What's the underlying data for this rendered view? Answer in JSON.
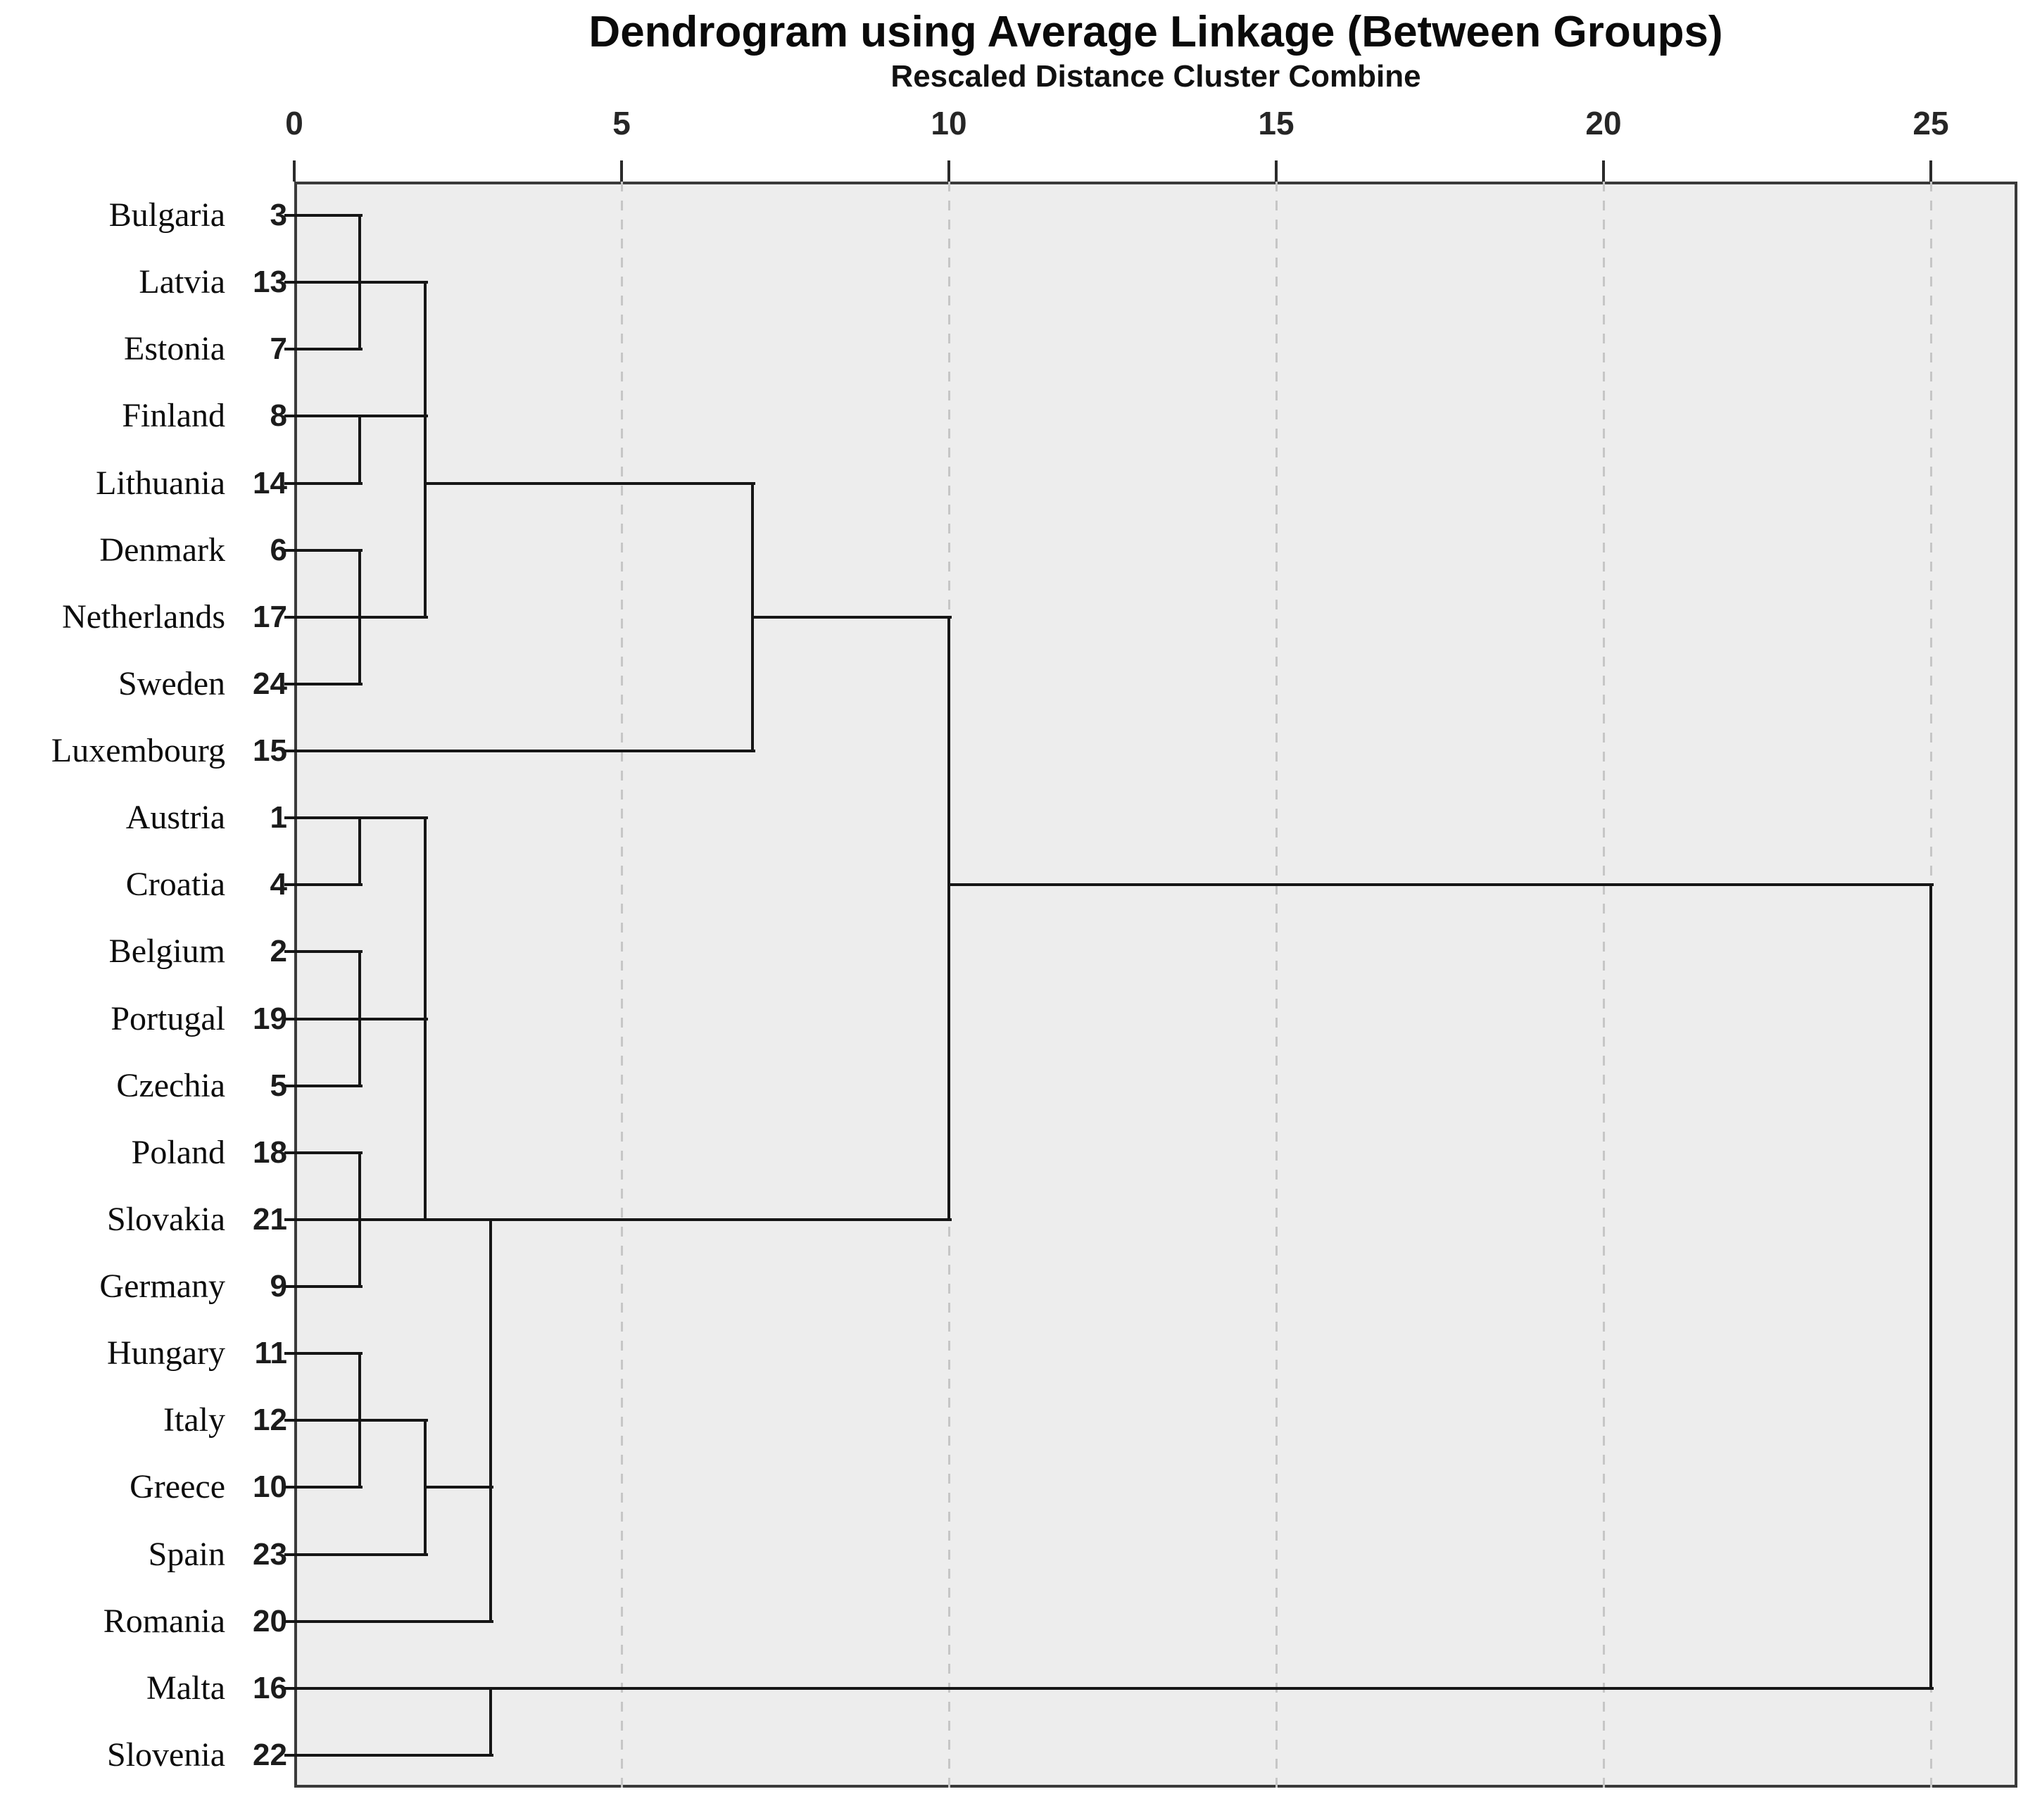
{
  "header": {
    "title": "Dendrogram using Average Linkage (Between Groups)",
    "subtitle": "Rescaled Distance Cluster Combine"
  },
  "axis": {
    "title": "Rescaled Distance Cluster Combine",
    "ticks": [
      "0",
      "5",
      "10",
      "15",
      "20",
      "25"
    ],
    "tick_values": [
      0,
      5,
      10,
      15,
      20,
      25
    ]
  },
  "chart_data": {
    "type": "dendrogram",
    "orientation": "horizontal",
    "title": "Dendrogram using Average Linkage (Between Groups)",
    "xlabel": "Rescaled Distance Cluster Combine",
    "xlim": [
      0,
      25
    ],
    "grid": "dashed vertical gridlines at 5,10,15,20,25",
    "leaves": [
      {
        "order": 1,
        "country": "Bulgaria",
        "case": "3"
      },
      {
        "order": 2,
        "country": "Latvia",
        "case": "13"
      },
      {
        "order": 3,
        "country": "Estonia",
        "case": "7"
      },
      {
        "order": 4,
        "country": "Finland",
        "case": "8"
      },
      {
        "order": 5,
        "country": "Lithuania",
        "case": "14"
      },
      {
        "order": 6,
        "country": "Denmark",
        "case": "6"
      },
      {
        "order": 7,
        "country": "Netherlands",
        "case": "17"
      },
      {
        "order": 8,
        "country": "Sweden",
        "case": "24"
      },
      {
        "order": 9,
        "country": "Luxembourg",
        "case": "15"
      },
      {
        "order": 10,
        "country": "Austria",
        "case": "1"
      },
      {
        "order": 11,
        "country": "Croatia",
        "case": "4"
      },
      {
        "order": 12,
        "country": "Belgium",
        "case": "2"
      },
      {
        "order": 13,
        "country": "Portugal",
        "case": "19"
      },
      {
        "order": 14,
        "country": "Czechia",
        "case": "5"
      },
      {
        "order": 15,
        "country": "Poland",
        "case": "18"
      },
      {
        "order": 16,
        "country": "Slovakia",
        "case": "21"
      },
      {
        "order": 17,
        "country": "Germany",
        "case": "9"
      },
      {
        "order": 18,
        "country": "Hungary",
        "case": "11"
      },
      {
        "order": 19,
        "country": "Italy",
        "case": "12"
      },
      {
        "order": 20,
        "country": "Greece",
        "case": "10"
      },
      {
        "order": 21,
        "country": "Spain",
        "case": "23"
      },
      {
        "order": 22,
        "country": "Romania",
        "case": "20"
      },
      {
        "order": 23,
        "country": "Malta",
        "case": "16"
      },
      {
        "order": 24,
        "country": "Slovenia",
        "case": "22"
      }
    ],
    "merges": [
      {
        "distance": 1,
        "members": "Bulgaria + Latvia + Estonia"
      },
      {
        "distance": 1,
        "members": "Finland + Lithuania"
      },
      {
        "distance": 1,
        "members": "Denmark + Netherlands + Sweden"
      },
      {
        "distance": 1,
        "members": "Austria + Croatia"
      },
      {
        "distance": 1,
        "members": "Belgium + Portugal + Czechia"
      },
      {
        "distance": 1,
        "members": "Poland + Slovakia + Germany"
      },
      {
        "distance": 1,
        "members": "Hungary + Italy + Greece"
      },
      {
        "distance": 2,
        "members": "{Bulgaria,Latvia,Estonia} + {Finland,Lithuania} + {Denmark,Netherlands,Sweden}"
      },
      {
        "distance": 2,
        "members": "{Austria,Croatia} + {Belgium,Portugal,Czechia} + {Poland,Slovakia,Germany}"
      },
      {
        "distance": 2,
        "members": "{Hungary,Italy,Greece} + Spain"
      },
      {
        "distance": 3,
        "members": "{central-8} + {Hungary,Italy,Greece,Spain} + Romania"
      },
      {
        "distance": 3,
        "members": "Malta + Slovenia"
      },
      {
        "distance": 7,
        "members": "{Baltic-Nordic-8} + Luxembourg"
      },
      {
        "distance": 10,
        "members": "{Baltic-Nordic-9} + {central-south-13}"
      },
      {
        "distance": 25,
        "members": "{main-22} + {Malta,Slovenia}"
      }
    ],
    "segments": {
      "horizontal": [
        [
          1,
          0,
          1
        ],
        [
          2,
          0,
          2
        ],
        [
          3,
          0,
          1
        ],
        [
          4,
          0,
          2
        ],
        [
          5,
          0,
          1
        ],
        [
          5,
          2,
          7
        ],
        [
          6,
          0,
          1
        ],
        [
          7,
          0,
          2
        ],
        [
          7,
          7,
          10
        ],
        [
          8,
          0,
          1
        ],
        [
          9,
          0,
          7
        ],
        [
          10,
          0,
          2
        ],
        [
          11,
          0,
          1
        ],
        [
          11,
          10,
          25
        ],
        [
          12,
          0,
          1
        ],
        [
          13,
          0,
          2
        ],
        [
          14,
          0,
          1
        ],
        [
          15,
          0,
          1
        ],
        [
          16,
          0,
          10
        ],
        [
          17,
          0,
          1
        ],
        [
          18,
          0,
          1
        ],
        [
          19,
          0,
          2
        ],
        [
          20,
          0,
          1
        ],
        [
          20,
          2,
          3
        ],
        [
          21,
          0,
          2
        ],
        [
          22,
          0,
          3
        ],
        [
          23,
          0,
          25
        ],
        [
          24,
          0,
          3
        ]
      ],
      "vertical": [
        [
          1,
          1,
          3
        ],
        [
          1,
          4,
          5
        ],
        [
          1,
          6,
          8
        ],
        [
          1,
          10,
          11
        ],
        [
          1,
          12,
          14
        ],
        [
          1,
          15,
          17
        ],
        [
          1,
          18,
          20
        ],
        [
          2,
          2,
          7
        ],
        [
          2,
          10,
          16
        ],
        [
          2,
          19,
          21
        ],
        [
          3,
          16,
          22
        ],
        [
          3,
          23,
          24
        ],
        [
          7,
          5,
          9
        ],
        [
          10,
          7,
          16
        ],
        [
          25,
          11,
          23
        ]
      ]
    },
    "colors": {
      "line": "#161616",
      "plot_background": "#ededed",
      "plot_border": "#3a3a3a",
      "gridline": "#c6c6c6",
      "text": "#0a0a0a",
      "page_background": "#ffffff"
    }
  }
}
